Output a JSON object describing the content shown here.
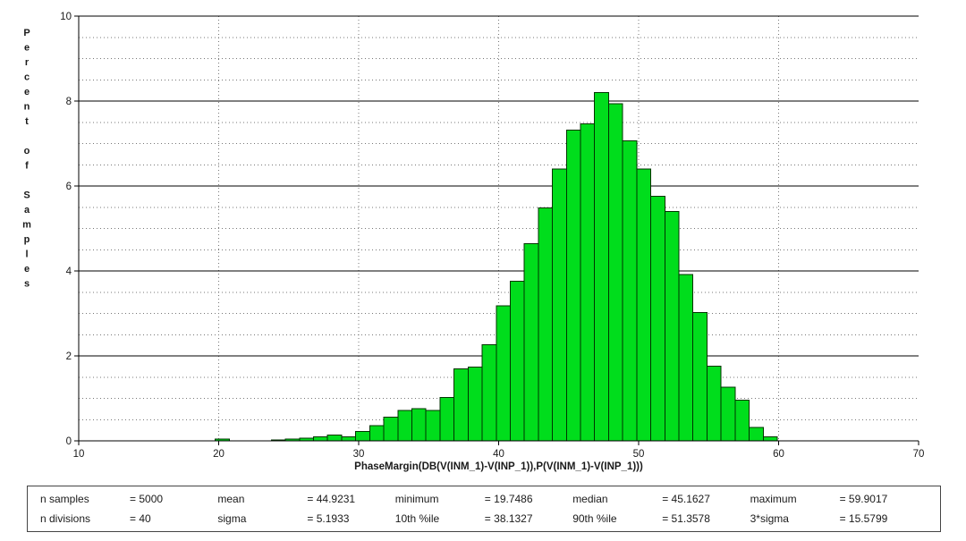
{
  "chart_data": {
    "type": "bar",
    "subtype": "histogram",
    "title": "",
    "xlabel": "PhaseMargin(DB(V(INM_1)-V(INP_1)),P(V(INM_1)-V(INP_1)))",
    "ylabel": "Percent of Samples",
    "xlim": [
      10,
      70
    ],
    "ylim": [
      0,
      10
    ],
    "x_ticks": [
      10,
      20,
      30,
      40,
      50,
      60,
      70
    ],
    "y_ticks": [
      0,
      2,
      4,
      6,
      8,
      10
    ],
    "y_minor_step": 0.5,
    "grid": "solid majors, dotted minors, dotted verticals at x majors",
    "legend_position": "none",
    "bar_color": "#00DD1C",
    "bar_border_color": "#003300",
    "bin_start": 19.7486,
    "bin_width": 1.00383,
    "n_bins": 40,
    "values": [
      0.04,
      0,
      0,
      0,
      0.02,
      0.04,
      0.06,
      0.1,
      0.14,
      0.1,
      0.22,
      0.36,
      0.56,
      0.72,
      0.76,
      0.72,
      1.02,
      1.7,
      1.74,
      2.26,
      3.18,
      3.76,
      4.64,
      5.48,
      6.4,
      7.32,
      7.46,
      8.2,
      7.94,
      7.06,
      6.4,
      5.76,
      5.4,
      3.92,
      3.02,
      1.76,
      1.26,
      0.96,
      0.32,
      0.1
    ]
  },
  "stats": {
    "rows": [
      {
        "pairs": [
          {
            "label": "n samples",
            "value": "= 5000"
          },
          {
            "label": "mean",
            "value": "= 44.9231"
          },
          {
            "label": "minimum",
            "value": "= 19.7486"
          },
          {
            "label": "median",
            "value": "= 45.1627"
          },
          {
            "label": "maximum",
            "value": "= 59.9017"
          }
        ]
      },
      {
        "pairs": [
          {
            "label": "n divisions",
            "value": "= 40"
          },
          {
            "label": "sigma",
            "value": "= 5.1933"
          },
          {
            "label": "10th %ile",
            "value": "= 38.1327"
          },
          {
            "label": "90th %ile",
            "value": "= 51.3578"
          },
          {
            "label": "3*sigma",
            "value": "= 15.5799"
          }
        ]
      }
    ]
  }
}
